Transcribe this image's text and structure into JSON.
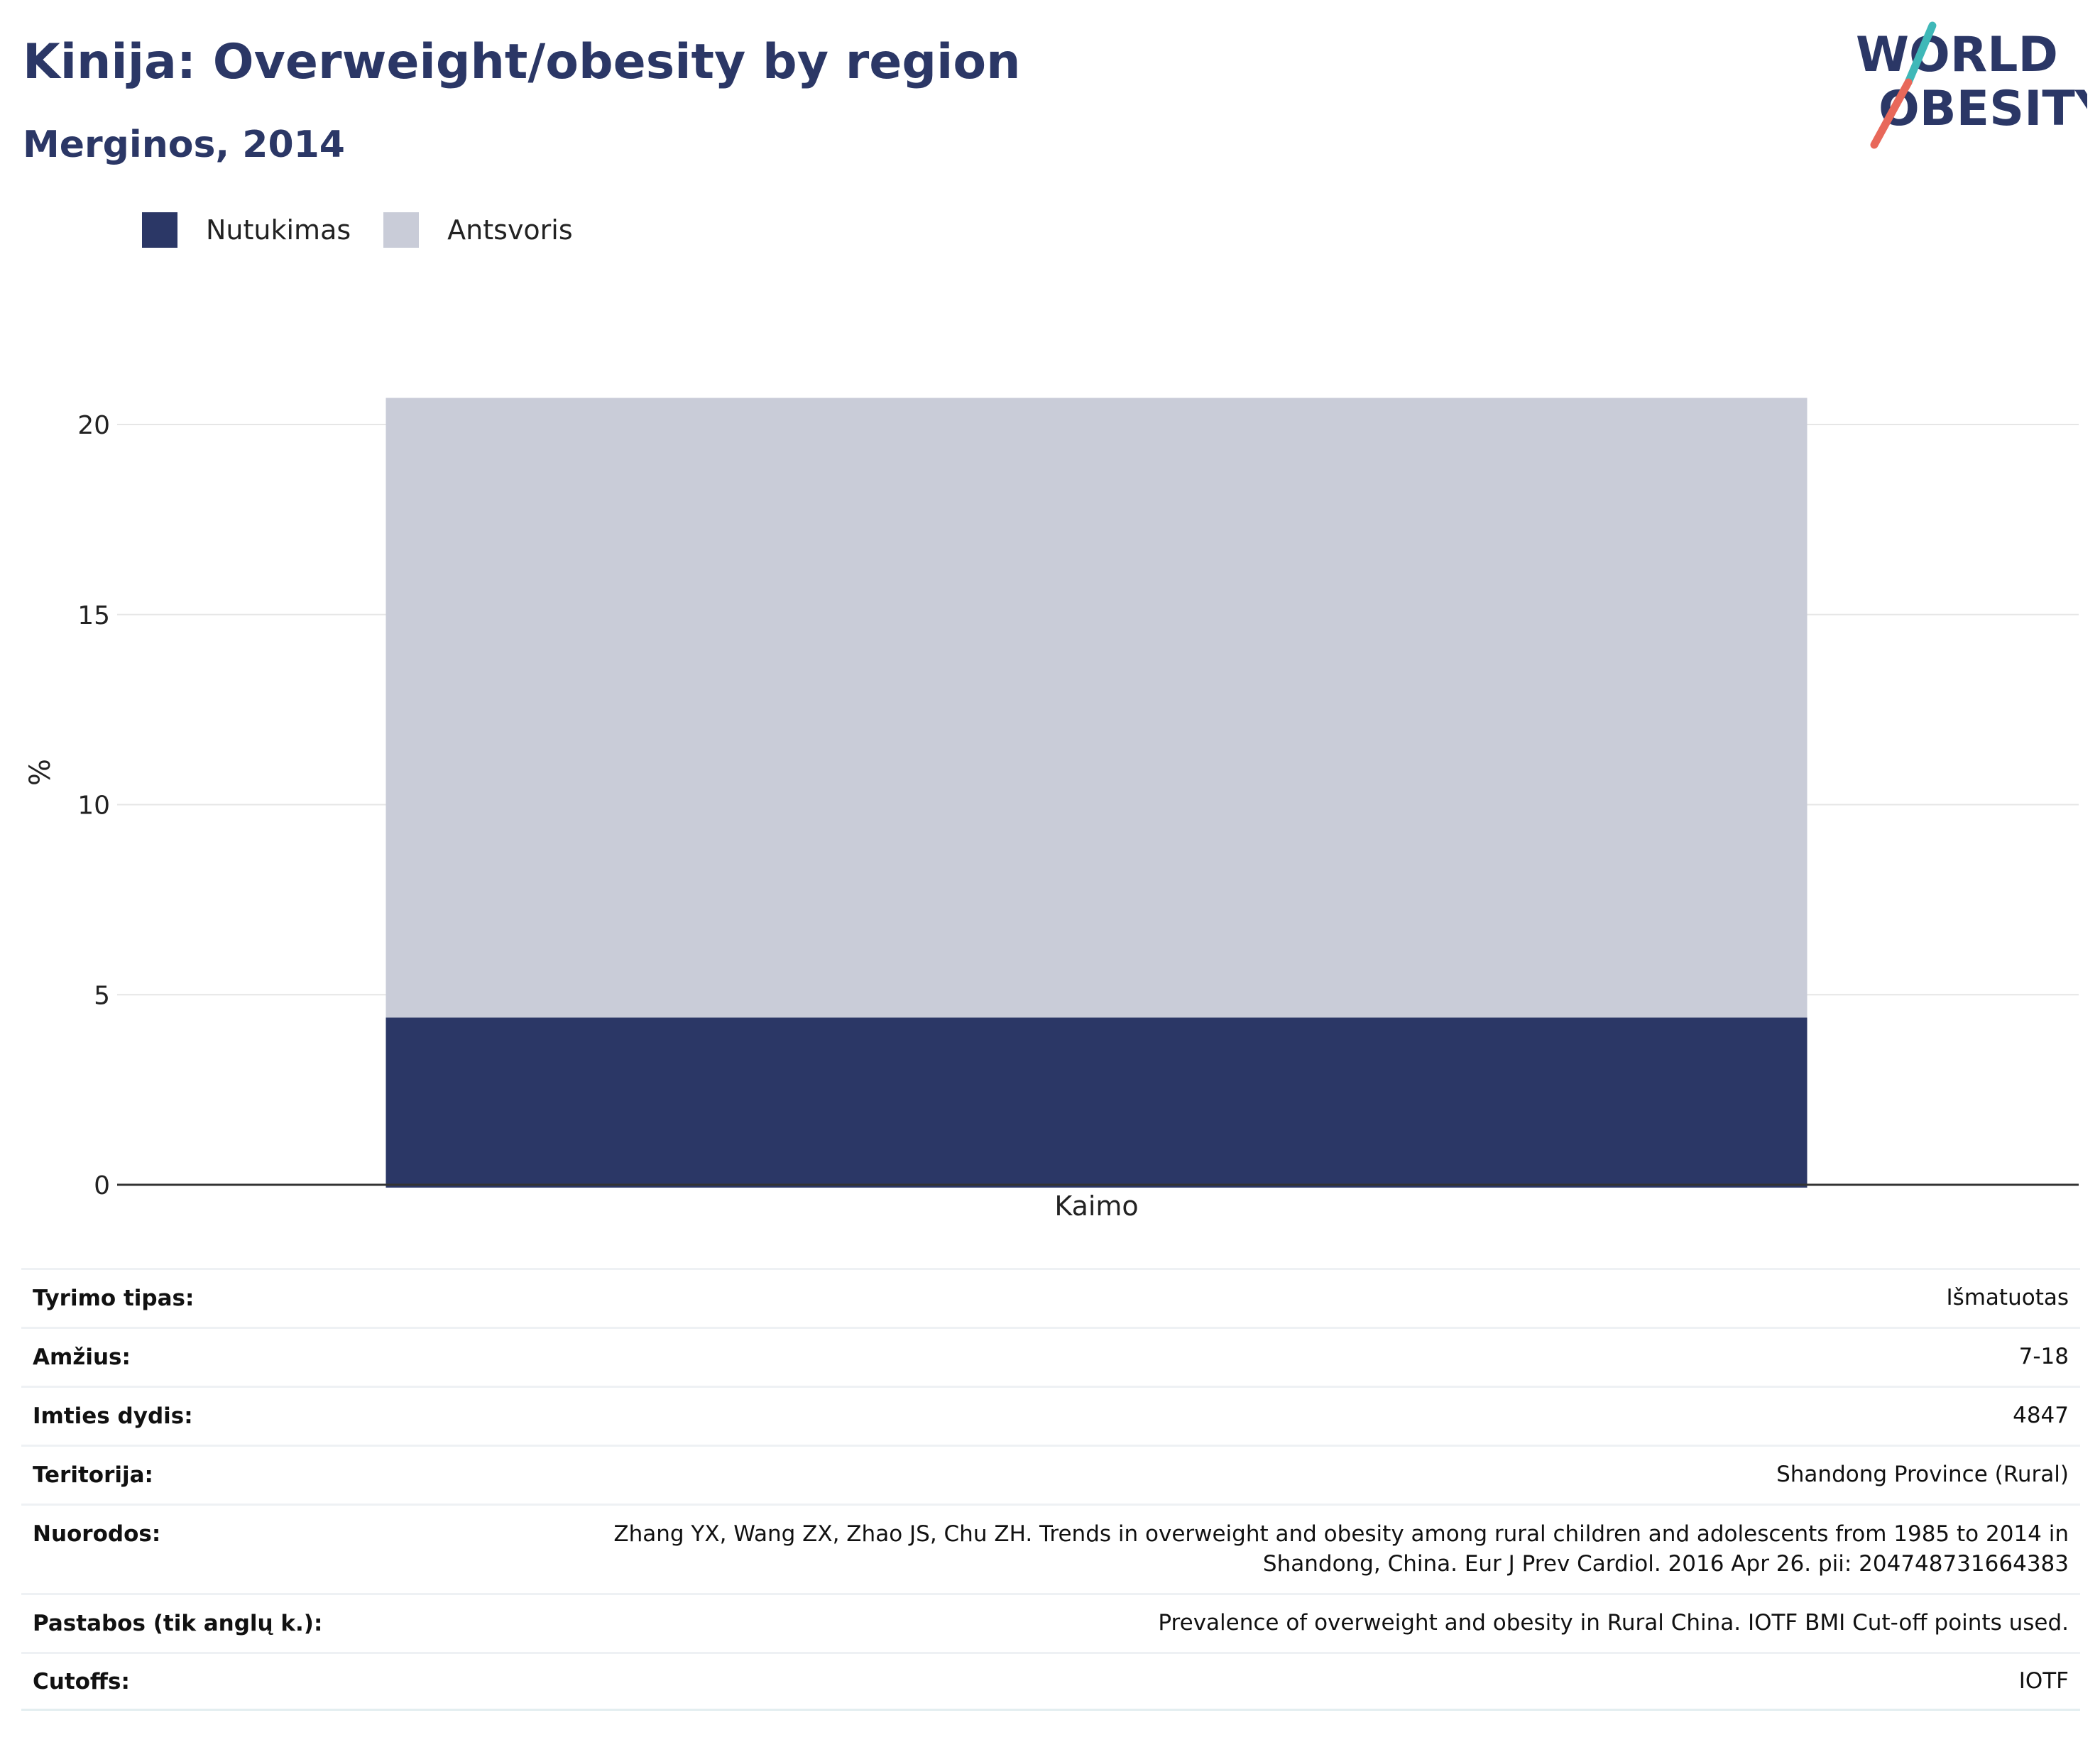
{
  "header": {
    "title": "Kinija: Overweight/obesity by region",
    "subtitle": "Merginos, 2014"
  },
  "logo": {
    "line1": "WORLD",
    "line2": "OBESITY",
    "colors": {
      "text": "#2b3766",
      "slash_top": "#3fb8b8",
      "slash_bottom": "#e8685a"
    }
  },
  "colors": {
    "obesity": "#2b3766",
    "overweight": "#c9ccd8",
    "grid": "#e6e6e6",
    "axis": "#333333"
  },
  "chart_data": {
    "type": "bar",
    "stacked": true,
    "categories": [
      "Kaimo"
    ],
    "series": [
      {
        "name": "Nutukimas",
        "values": [
          4.4
        ],
        "color": "#2b3766"
      },
      {
        "name": "Antsvoris",
        "values": [
          16.3
        ],
        "color": "#c9ccd8"
      }
    ],
    "ylabel": "%",
    "xlabel": "",
    "ylim": [
      0,
      21
    ],
    "yticks": [
      0,
      5,
      10,
      15,
      20
    ],
    "grid": true,
    "legend": "top-left"
  },
  "meta": {
    "rows": [
      {
        "key": "Tyrimo tipas:",
        "value": "Išmatuotas"
      },
      {
        "key": "Amžius:",
        "value": "7-18"
      },
      {
        "key": "Imties dydis:",
        "value": "4847"
      },
      {
        "key": "Teritorija:",
        "value": "Shandong Province (Rural)"
      },
      {
        "key": "Nuorodos:",
        "value_line1": "Zhang YX, Wang ZX, Zhao JS, Chu ZH. Trends in overweight and obesity among rural children and adolescents from 1985 to 2014 in",
        "value_line2": "Shandong, China. Eur J Prev Cardiol. 2016 Apr 26. pii: 204748731664383"
      },
      {
        "key": "Pastabos (tik anglų k.):",
        "value": "Prevalence of overweight and obesity in Rural China. IOTF BMI Cut-off points used."
      },
      {
        "key": "Cutoffs:",
        "value": "IOTF"
      }
    ]
  }
}
